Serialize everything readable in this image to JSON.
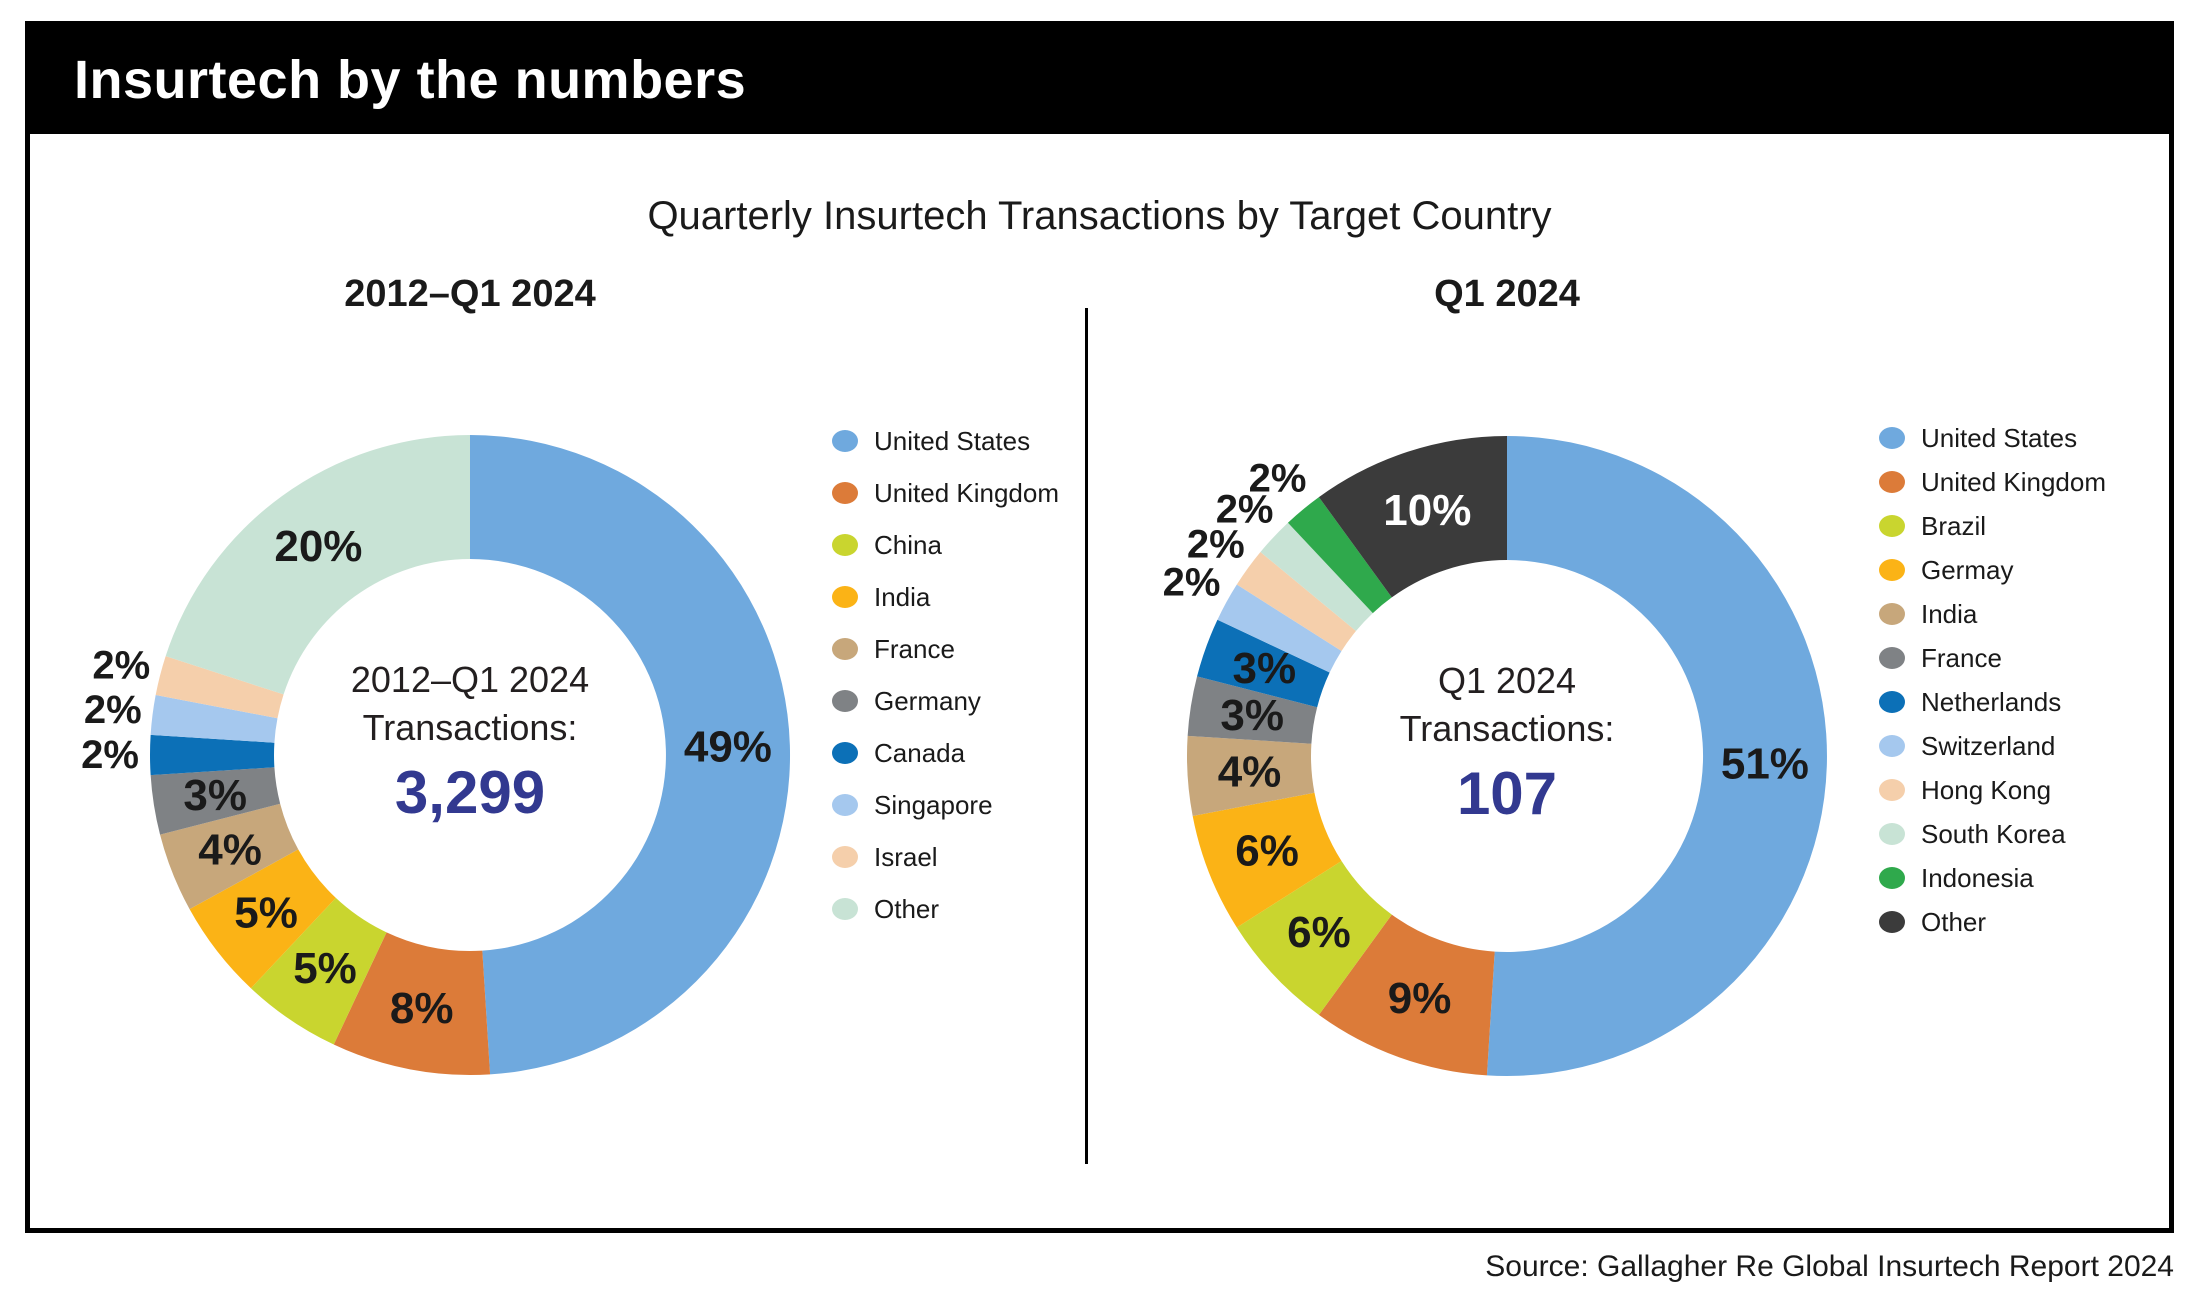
{
  "header": {
    "title": "Insurtech by the numbers"
  },
  "main_title": "Quarterly Insurtech Transactions by Target Country",
  "source": "Source: Gallagher Re Global Insurtech Report 2024",
  "colors": {
    "accent_number": "#323990",
    "frame_border": "#000000",
    "header_bg": "#000000",
    "header_text": "#ffffff"
  },
  "chart_data": [
    {
      "type": "pie",
      "variant": "donut",
      "title": "2012–Q1 2024",
      "center_label_line1": "2012–Q1 2024",
      "center_label_line2": "Transactions:",
      "center_value": "3,299",
      "start_angle": "12-o-clock",
      "direction": "clockwise",
      "legend_position": "right",
      "slices": [
        {
          "label": "United States",
          "value_pct": 49,
          "display": "49%",
          "color": "#6FA9DE",
          "label_inside": true
        },
        {
          "label": "United Kingdom",
          "value_pct": 8,
          "display": "8%",
          "color": "#DC7B39",
          "label_inside": true
        },
        {
          "label": "China",
          "value_pct": 5,
          "display": "5%",
          "color": "#C9D52F",
          "label_inside": true
        },
        {
          "label": "India",
          "value_pct": 5,
          "display": "5%",
          "color": "#FBB316",
          "label_inside": true
        },
        {
          "label": "France",
          "value_pct": 4,
          "display": "4%",
          "color": "#C7A77B",
          "label_inside": true
        },
        {
          "label": "Germany",
          "value_pct": 3,
          "display": "3%",
          "color": "#7F8285",
          "label_inside": true
        },
        {
          "label": "Canada",
          "value_pct": 2,
          "display": "2%",
          "color": "#0C70B7",
          "label_inside": false
        },
        {
          "label": "Singapore",
          "value_pct": 2,
          "display": "2%",
          "color": "#A5C8EE",
          "label_inside": false
        },
        {
          "label": "Israel",
          "value_pct": 2,
          "display": "2%",
          "color": "#F5CFAB",
          "label_inside": false
        },
        {
          "label": "Other",
          "value_pct": 20,
          "display": "20%",
          "color": "#C8E3D5",
          "label_inside": true
        }
      ]
    },
    {
      "type": "pie",
      "variant": "donut",
      "title": "Q1 2024",
      "center_label_line1": "Q1 2024",
      "center_label_line2": "Transactions:",
      "center_value": "107",
      "start_angle": "12-o-clock",
      "direction": "clockwise",
      "legend_position": "right",
      "slices": [
        {
          "label": "United States",
          "value_pct": 51,
          "display": "51%",
          "color": "#6FA9DE",
          "label_inside": true
        },
        {
          "label": "United Kingdom",
          "value_pct": 9,
          "display": "9%",
          "color": "#DC7B39",
          "label_inside": true
        },
        {
          "label": "Brazil",
          "value_pct": 6,
          "display": "6%",
          "color": "#C9D52F",
          "label_inside": true
        },
        {
          "label": "Germay",
          "value_pct": 6,
          "display": "6%",
          "color": "#FBB316",
          "label_inside": true
        },
        {
          "label": "India",
          "value_pct": 4,
          "display": "4%",
          "color": "#C7A77B",
          "label_inside": true
        },
        {
          "label": "France",
          "value_pct": 3,
          "display": "3%",
          "color": "#7F8285",
          "label_inside": true
        },
        {
          "label": "Netherlands",
          "value_pct": 3,
          "display": "3%",
          "color": "#0C70B7",
          "label_inside": true
        },
        {
          "label": "Switzerland",
          "value_pct": 2,
          "display": "2%",
          "color": "#A5C8EE",
          "label_inside": false
        },
        {
          "label": "Hong Kong",
          "value_pct": 2,
          "display": "2%",
          "color": "#F5CFAB",
          "label_inside": false
        },
        {
          "label": "South Korea",
          "value_pct": 2,
          "display": "2%",
          "color": "#C8E3D5",
          "label_inside": false
        },
        {
          "label": "Indonesia",
          "value_pct": 2,
          "display": "2%",
          "color": "#2FA94C",
          "label_inside": false
        },
        {
          "label": "Other",
          "value_pct": 10,
          "display": "10%",
          "color": "#3B3B3B",
          "label_inside": true,
          "label_color": "#FFFFFF"
        }
      ]
    }
  ]
}
